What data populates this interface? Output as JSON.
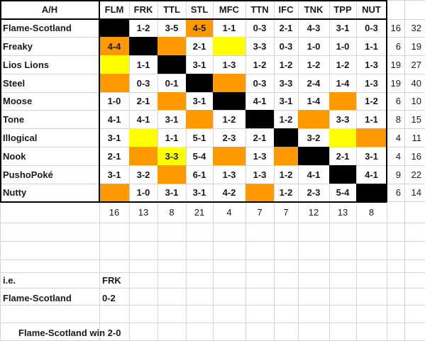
{
  "corner_label": "A/H",
  "columns": [
    "FLM",
    "FRK",
    "TTL",
    "STL",
    "MFC",
    "TTN",
    "IFC",
    "TNK",
    "TPP",
    "NUT"
  ],
  "rows": [
    {
      "team": "Flame-Scotland",
      "cells": [
        "",
        "1-2",
        "3-5",
        "4-5",
        "1-1",
        "0-3",
        "2-1",
        "4-3",
        "3-1",
        "0-3"
      ],
      "colors": [
        "black",
        "",
        "",
        "orange",
        "",
        "",
        "",
        "",
        "",
        ""
      ],
      "a": "16",
      "b": "32"
    },
    {
      "team": "Freaky",
      "cells": [
        "4-4",
        "",
        "",
        "2-1",
        "",
        "3-3",
        "0-3",
        "1-0",
        "1-0",
        "1-1"
      ],
      "colors": [
        "orange",
        "black",
        "orange",
        "",
        "yellow",
        "",
        "",
        "",
        "",
        ""
      ],
      "a": "6",
      "b": "19"
    },
    {
      "team": "Lios Lions",
      "cells": [
        "",
        "1-1",
        "",
        "3-1",
        "1-3",
        "1-2",
        "1-2",
        "1-2",
        "1-2",
        "1-3"
      ],
      "colors": [
        "yellow",
        "",
        "black",
        "",
        "",
        "",
        "",
        "",
        "",
        ""
      ],
      "a": "19",
      "b": "27"
    },
    {
      "team": "Steel",
      "cells": [
        "",
        "0-3",
        "0-1",
        "",
        "",
        "0-3",
        "3-3",
        "2-4",
        "1-4",
        "1-3"
      ],
      "colors": [
        "orange",
        "",
        "",
        "black",
        "orange",
        "",
        "",
        "",
        "",
        ""
      ],
      "a": "19",
      "b": "40"
    },
    {
      "team": "Moose",
      "cells": [
        "1-0",
        "2-1",
        "",
        "3-1",
        "",
        "4-1",
        "3-1",
        "1-4",
        "",
        "1-2"
      ],
      "colors": [
        "",
        "",
        "orange",
        "",
        "black",
        "",
        "",
        "",
        "orange",
        ""
      ],
      "a": "6",
      "b": "10"
    },
    {
      "team": "Tone",
      "cells": [
        "4-1",
        "4-1",
        "3-1",
        "",
        "1-2",
        "",
        "1-2",
        "",
        "3-3",
        "1-1"
      ],
      "colors": [
        "",
        "",
        "",
        "orange",
        "",
        "black",
        "",
        "orange",
        "",
        ""
      ],
      "a": "8",
      "b": "15"
    },
    {
      "team": "Illogical",
      "cells": [
        "3-1",
        "",
        "1-1",
        "5-1",
        "2-3",
        "2-1",
        "",
        "3-2",
        "",
        ""
      ],
      "colors": [
        "",
        "yellow",
        "",
        "",
        "",
        "",
        "black",
        "",
        "yellow",
        "orange"
      ],
      "a": "4",
      "b": "11"
    },
    {
      "team": "Nook",
      "cells": [
        "2-1",
        "",
        "3-3",
        "5-4",
        "",
        "1-3",
        "",
        "",
        "2-1",
        "3-1"
      ],
      "colors": [
        "",
        "orange",
        "yellow",
        "",
        "orange",
        "",
        "orange",
        "black",
        "",
        ""
      ],
      "a": "4",
      "b": "16"
    },
    {
      "team": "PushoPoké",
      "cells": [
        "3-1",
        "3-2",
        "",
        "6-1",
        "1-3",
        "1-3",
        "1-2",
        "4-1",
        "",
        "4-1"
      ],
      "colors": [
        "",
        "",
        "orange",
        "",
        "",
        "",
        "",
        "",
        "black",
        ""
      ],
      "a": "9",
      "b": "22"
    },
    {
      "team": "Nutty",
      "cells": [
        "",
        "1-0",
        "3-1",
        "3-1",
        "4-2",
        "",
        "1-2",
        "2-3",
        "5-4",
        ""
      ],
      "colors": [
        "orange",
        "",
        "",
        "",
        "",
        "orange",
        "",
        "",
        "",
        "black"
      ],
      "a": "6",
      "b": "14"
    }
  ],
  "column_totals": [
    "16",
    "13",
    "8",
    "21",
    "4",
    "7",
    "7",
    "12",
    "13",
    "8"
  ],
  "example": {
    "label": "i.e.",
    "column": "FRK",
    "team": "Flame-Scotland",
    "score": "0-2",
    "result": "Flame-Scotland win 2-0"
  },
  "colors": {
    "black": "#000000",
    "orange": "#ff9900",
    "yellow": "#ffff00",
    "gridline": "#d4d4d4"
  }
}
